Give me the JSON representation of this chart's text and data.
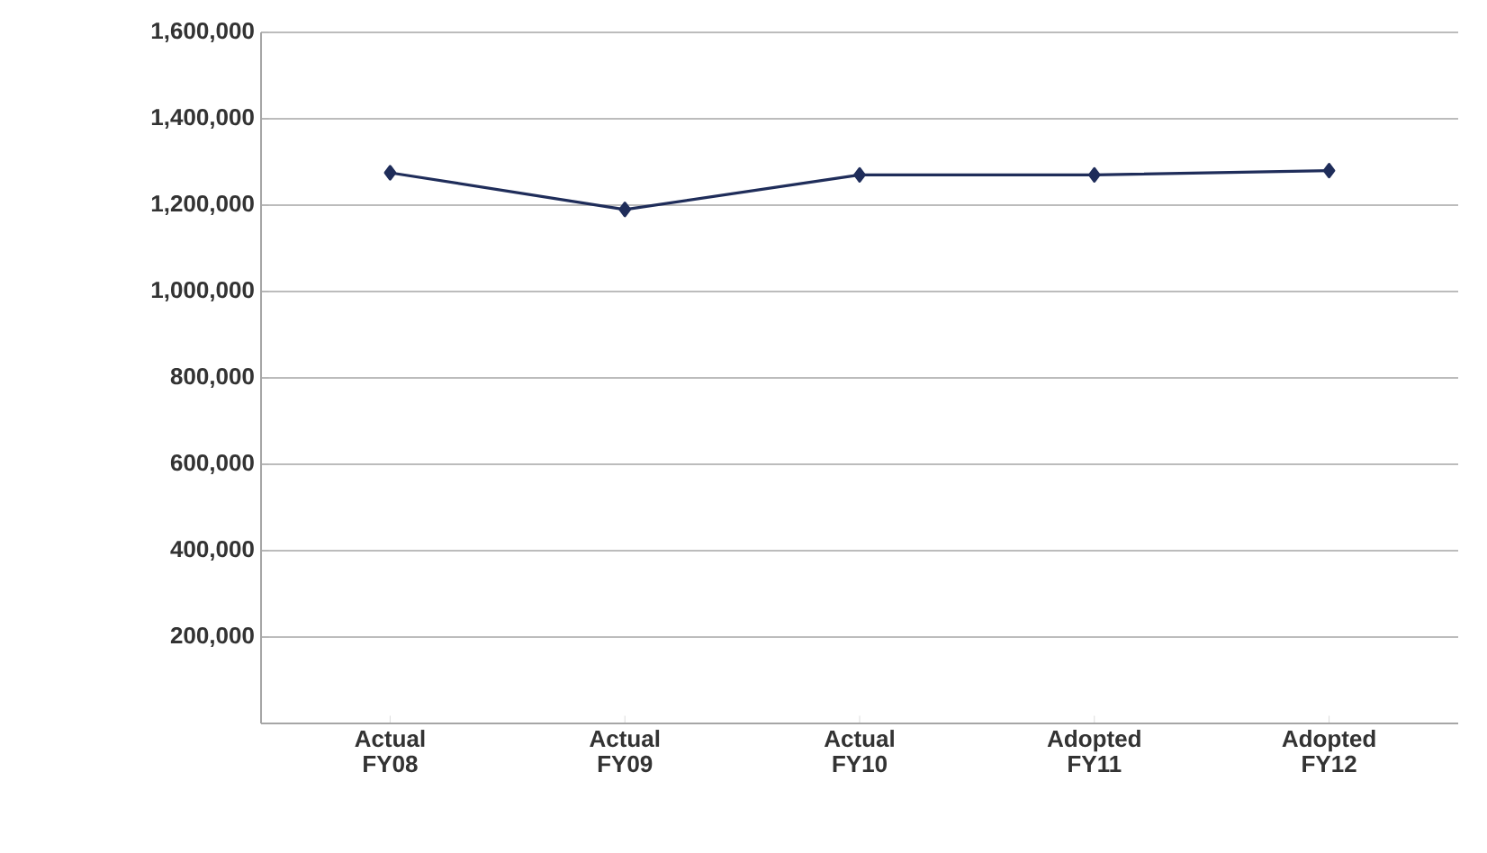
{
  "chart_data": {
    "type": "line",
    "categories": [
      "Actual FY08",
      "Actual FY09",
      "Actual FY10",
      "Adopted FY11",
      "Adopted FY12"
    ],
    "series": [
      {
        "color": "#1f2d5a",
        "values": [
          1275000,
          1190000,
          1270000,
          1270000,
          1280000
        ]
      }
    ],
    "ylim": [
      0,
      1600000
    ],
    "yticks": [
      {
        "value": 0,
        "label": null
      },
      {
        "value": 200000,
        "label": "200,000"
      },
      {
        "value": 400000,
        "label": "400,000"
      },
      {
        "value": 600000,
        "label": "600,000"
      },
      {
        "value": 800000,
        "label": "800,000"
      },
      {
        "value": 1000000,
        "label": "1,000,000"
      },
      {
        "value": 1200000,
        "label": "1,200,000"
      },
      {
        "value": 1400000,
        "label": "1,400,000"
      },
      {
        "value": 1600000,
        "label": "1,600,000"
      }
    ],
    "grid": "y",
    "marker": "diamond",
    "line_style": "solid",
    "legend": false
  }
}
